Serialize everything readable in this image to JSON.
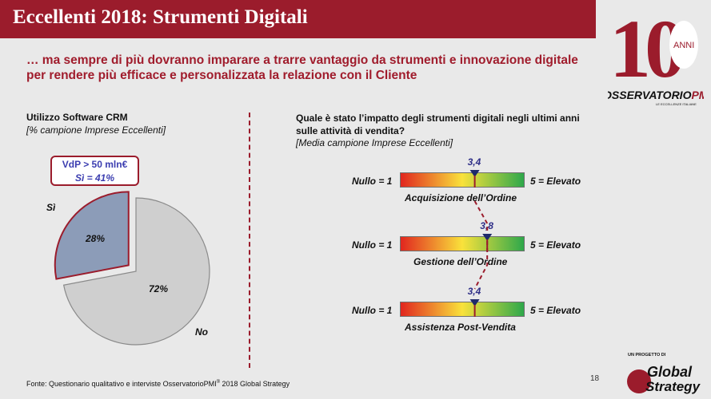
{
  "header": {
    "title": "Eccellenti 2018: Strumenti Digitali",
    "subtitle": "… ma sempre di più dovranno imparare a trarre vantaggio da strumenti e innovazione digitale per rendere più efficace e personalizzata la relazione con il Cliente"
  },
  "logo": {
    "number": "10",
    "anni": "ANNI",
    "brand_main": "OSSERVATORIO",
    "brand_suffix": "PMI",
    "tagline": "LE ECCELLENZE ITALIANE"
  },
  "left_panel": {
    "title": "Utilizzo Software CRM",
    "subtitle": "[% campione Imprese Eccellenti]",
    "callout_line1": "VdP > 50 mln€",
    "callout_line2": "Sì = 41%",
    "label_si": "Sì",
    "label_no": "No",
    "pct_si": "28%",
    "pct_no": "72%"
  },
  "right_panel": {
    "title": "Quale è stato l’impatto degli strumenti digitali negli ultimi anni sulle attività di vendita?",
    "subtitle": "[Media campione Imprese Eccellenti]",
    "scale_low": "Nullo = 1",
    "scale_high": "5 = Elevato",
    "items": [
      {
        "label": "Acquisizione dell’Ordine",
        "value_text": "3,4"
      },
      {
        "label": "Gestione dell’Ordine",
        "value_text": "3,8"
      },
      {
        "label": "Assistenza Post-Vendita",
        "value_text": "3,4"
      }
    ]
  },
  "chart_data": [
    {
      "type": "pie",
      "title": "Utilizzo Software CRM",
      "categories": [
        "Sì",
        "No"
      ],
      "values": [
        28,
        72
      ],
      "colors": [
        "#8c9cb8",
        "#cfcfcf"
      ]
    },
    {
      "type": "bar",
      "title": "Quale è stato l’impatto degli strumenti digitali negli ultimi anni sulle attività di vendita?",
      "categories": [
        "Acquisizione dell’Ordine",
        "Gestione dell’Ordine",
        "Assistenza Post-Vendita"
      ],
      "values": [
        3.4,
        3.8,
        3.4
      ],
      "xlim": [
        1,
        5
      ]
    }
  ],
  "footer": {
    "source_prefix": "Fonte: Questionario qualitativo e interviste OsservatorioPMI",
    "source_sup": "®",
    "source_suffix": " 2018 Global Strategy",
    "page": "18",
    "project_label": "UN PROGETTO DI",
    "gs_line1": "Global",
    "gs_line2": "Strategy"
  },
  "colors": {
    "brand": "#9b1c2c",
    "value_text": "#2f2f88",
    "marker": "#1f2a6b"
  }
}
